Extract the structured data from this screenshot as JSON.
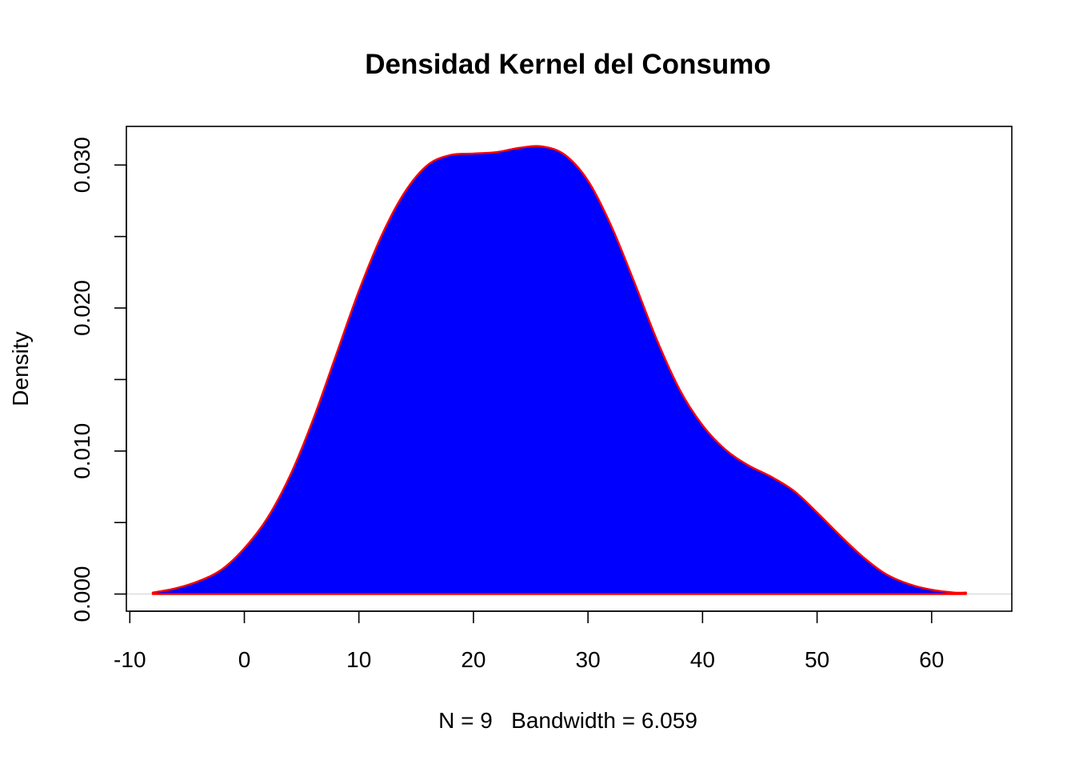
{
  "chart_data": {
    "type": "area",
    "title": "Densidad Kernel del Consumo",
    "xlabel": "N = 9   Bandwidth = 6.059",
    "ylabel": "Density",
    "xlim": [
      -10.3,
      67.0
    ],
    "ylim": [
      -0.0012,
      0.0327
    ],
    "x_ticks": [
      -10,
      0,
      10,
      20,
      30,
      40,
      50,
      60
    ],
    "x_tick_labels": [
      "-10",
      "0",
      "10",
      "20",
      "30",
      "40",
      "50",
      "60"
    ],
    "y_ticks": [
      0.0,
      0.005,
      0.01,
      0.015,
      0.02,
      0.025,
      0.03
    ],
    "y_tick_labels": [
      "0.000",
      "",
      "0.010",
      "",
      "0.020",
      "",
      "0.030"
    ],
    "grid": false,
    "zero_line": true,
    "colors": {
      "fill": "#0000ff",
      "line": "#ff0000",
      "zero_line": "#dddddd",
      "axes": "#000000"
    },
    "series": [
      {
        "x": [
          -8.0,
          -6.0,
          -4.0,
          -2.0,
          0.0,
          2.0,
          4.0,
          6.0,
          8.0,
          10.0,
          12.0,
          14.0,
          16.0,
          18.0,
          20.0,
          22.0,
          24.0,
          26.0,
          28.0,
          30.0,
          32.0,
          34.0,
          36.0,
          38.0,
          40.0,
          42.0,
          44.0,
          46.0,
          48.0,
          50.0,
          52.0,
          54.0,
          56.0,
          58.0,
          60.0,
          62.0,
          63.0
        ],
        "y": [
          0.0001,
          0.0004,
          0.0009,
          0.0017,
          0.0032,
          0.0053,
          0.0083,
          0.0122,
          0.0167,
          0.0212,
          0.0251,
          0.0281,
          0.03,
          0.0307,
          0.0308,
          0.0309,
          0.0312,
          0.0313,
          0.0307,
          0.0289,
          0.0258,
          0.0219,
          0.0178,
          0.0143,
          0.0118,
          0.0101,
          0.009,
          0.0082,
          0.0072,
          0.0057,
          0.0041,
          0.0026,
          0.0014,
          0.0007,
          0.0003,
          0.0001,
          0.0001
        ]
      }
    ]
  }
}
